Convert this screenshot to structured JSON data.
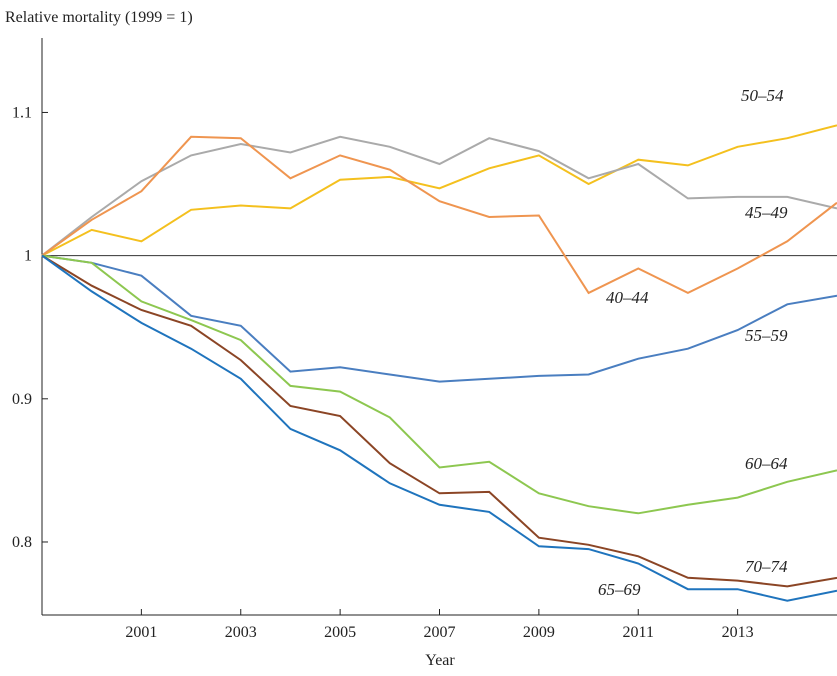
{
  "chart_data": {
    "type": "line",
    "y_label": "Relative mortality (1999 = 1)",
    "x_label": "Year",
    "x": [
      1999,
      2000,
      2001,
      2002,
      2003,
      2004,
      2005,
      2006,
      2007,
      2008,
      2009,
      2010,
      2011,
      2012,
      2013,
      2014,
      2015
    ],
    "xlim": [
      1999,
      2015
    ],
    "xticks": [
      2001,
      2003,
      2005,
      2007,
      2009,
      2011,
      2013
    ],
    "ylim": [
      0.749,
      1.152
    ],
    "yticks": [
      0.8,
      0.9,
      1,
      1.1
    ],
    "reference_line": 1,
    "series": [
      {
        "name": "50–54",
        "color": "#f4c01e",
        "values": [
          1,
          1.018,
          1.01,
          1.032,
          1.035,
          1.033,
          1.053,
          1.055,
          1.047,
          1.061,
          1.07,
          1.05,
          1.067,
          1.063,
          1.076,
          1.082,
          1.091
        ]
      },
      {
        "name": "45–49",
        "color": "#aaaaaa",
        "values": [
          1,
          1.027,
          1.052,
          1.07,
          1.078,
          1.072,
          1.083,
          1.076,
          1.064,
          1.082,
          1.073,
          1.054,
          1.064,
          1.04,
          1.041,
          1.041,
          1.033
        ]
      },
      {
        "name": "40–44",
        "color": "#ef9550",
        "values": [
          1,
          1.025,
          1.045,
          1.083,
          1.082,
          1.054,
          1.07,
          1.06,
          1.038,
          1.027,
          1.028,
          0.974,
          0.991,
          0.974,
          0.991,
          1.01,
          1.037
        ]
      },
      {
        "name": "55–59",
        "color": "#4a7ec0",
        "values": [
          1,
          0.995,
          0.986,
          0.958,
          0.951,
          0.919,
          0.922,
          0.917,
          0.912,
          0.914,
          0.916,
          0.917,
          0.928,
          0.935,
          0.948,
          0.966,
          0.972
        ]
      },
      {
        "name": "60–64",
        "color": "#8dc750",
        "values": [
          1,
          0.995,
          0.968,
          0.955,
          0.941,
          0.909,
          0.905,
          0.887,
          0.852,
          0.856,
          0.834,
          0.825,
          0.82,
          0.826,
          0.831,
          0.842,
          0.85
        ]
      },
      {
        "name": "70–74",
        "color": "#8b4525",
        "values": [
          1,
          0.979,
          0.962,
          0.951,
          0.927,
          0.895,
          0.888,
          0.855,
          0.834,
          0.835,
          0.803,
          0.798,
          0.79,
          0.775,
          0.773,
          0.769,
          0.775
        ]
      },
      {
        "name": "65–69",
        "color": "#1f74bd",
        "values": [
          1,
          0.975,
          0.953,
          0.935,
          0.914,
          0.879,
          0.864,
          0.841,
          0.826,
          0.821,
          0.797,
          0.795,
          0.785,
          0.767,
          0.767,
          0.759,
          0.766
        ]
      }
    ]
  }
}
